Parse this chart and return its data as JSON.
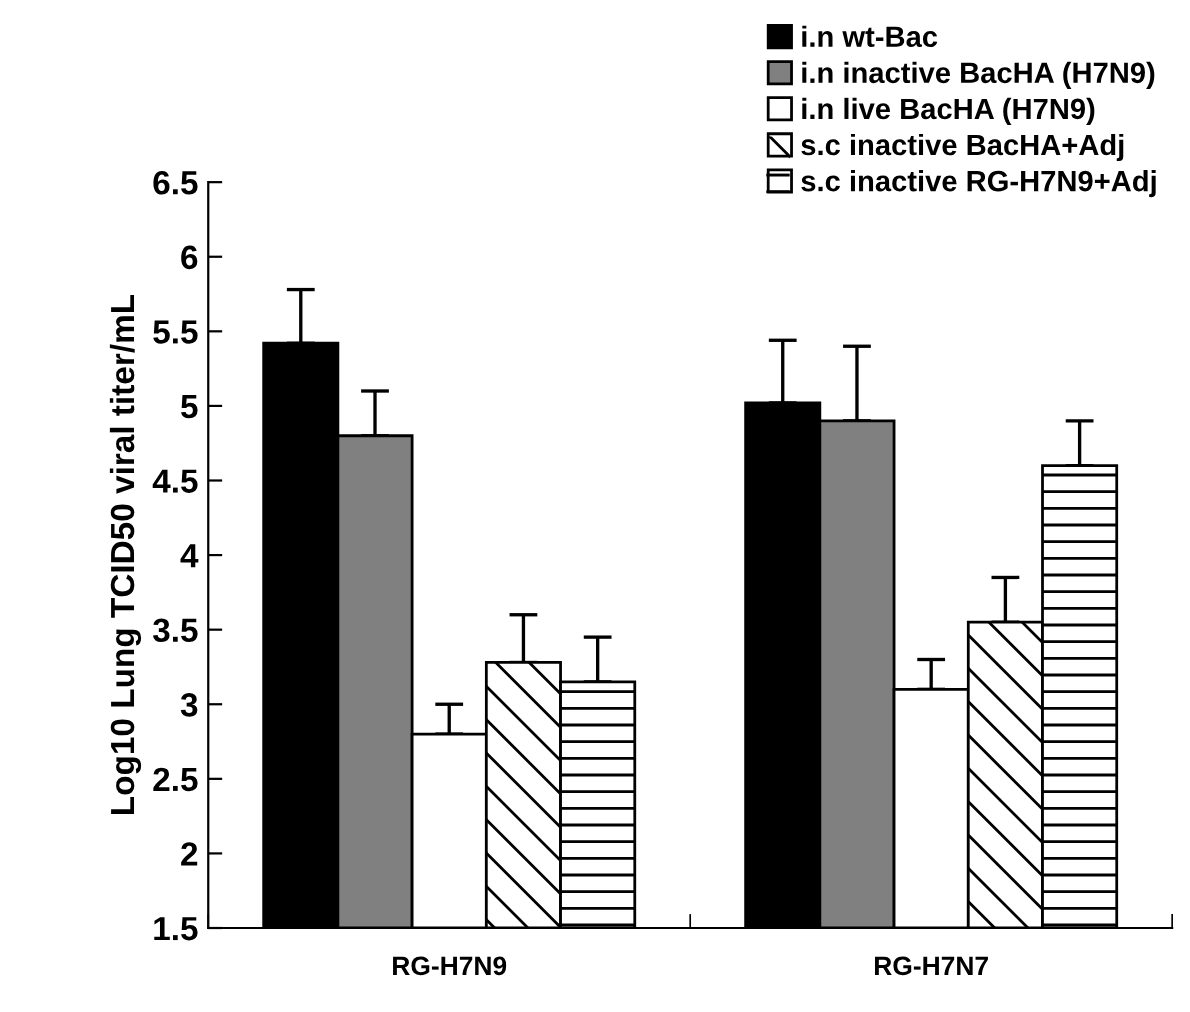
{
  "chart_data": {
    "type": "bar",
    "ylabel": "Log10 Lung TCID50 viral titer/mL",
    "categories": [
      "RG-H7N9",
      "RG-H7N7"
    ],
    "series": [
      {
        "name": "i.n wt-Bac",
        "color": "#000000",
        "values": [
          5.42,
          5.02
        ],
        "errors": [
          [
            5.42,
            5.78
          ],
          [
            5.02,
            5.44
          ]
        ]
      },
      {
        "name": "i.n inactive BacHA (H7N9)",
        "color": "#808080",
        "values": [
          4.8,
          4.9
        ],
        "errors": [
          [
            4.8,
            5.1
          ],
          [
            4.9,
            5.4
          ]
        ]
      },
      {
        "name": "i.n live BacHA (H7N9)",
        "color": "#ffffff",
        "values": [
          2.8,
          3.1
        ],
        "errors": [
          [
            2.8,
            3.0
          ],
          [
            3.1,
            3.3
          ]
        ]
      },
      {
        "name": "s.c inactive BacHA+Adj",
        "color": "#ffffff",
        "values": [
          3.28,
          3.55
        ],
        "errors": [
          [
            3.28,
            3.6
          ],
          [
            3.55,
            3.85
          ]
        ]
      },
      {
        "name": "s.c inactive RG-H7N9+Adj",
        "color": "#ffffff",
        "values": [
          3.15,
          4.6
        ],
        "errors": [
          [
            3.15,
            3.45
          ],
          [
            4.6,
            4.9
          ]
        ]
      }
    ],
    "ylim": [
      1.5,
      6.5
    ],
    "yticks": [
      1.5,
      2,
      2.5,
      3,
      3.5,
      4,
      4.5,
      5,
      5.5,
      6,
      6.5
    ],
    "grid": false,
    "legend": "top right"
  }
}
